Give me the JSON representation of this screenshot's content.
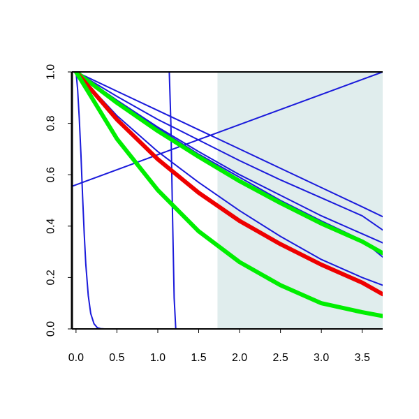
{
  "chart_data": {
    "type": "line",
    "title": "",
    "xlabel": "",
    "ylabel": "",
    "xlim": [
      -0.05,
      3.75
    ],
    "ylim": [
      0.0,
      1.0
    ],
    "grid": false,
    "legend": "none",
    "x_ticks": [
      "0.0",
      "0.5",
      "1.0",
      "1.5",
      "2.0",
      "2.5",
      "3.0",
      "3.5"
    ],
    "y_ticks": [
      "0.0",
      "0.2",
      "0.4",
      "0.6",
      "0.8",
      "1.0"
    ],
    "x_tick_values": [
      0,
      0.5,
      1,
      1.5,
      2,
      2.5,
      3,
      3.5
    ],
    "y_tick_values": [
      0,
      0.2,
      0.4,
      0.6,
      0.8,
      1.0
    ],
    "shaded_region": {
      "x_from": 1.73,
      "x_to": 3.75,
      "color": "#e0eded"
    },
    "colors": {
      "thin": "#1a1adb",
      "red": "#ee0000",
      "green": "#00ee00",
      "axis": "#000000"
    },
    "series": [
      {
        "style": "thin",
        "color": "#1a1adb",
        "x": [
          -0.05,
          3.75
        ],
        "y": [
          0.555,
          1.0
        ]
      },
      {
        "style": "thin",
        "color": "#1a1adb",
        "x": [
          0,
          0.02,
          0.04,
          0.06,
          0.08,
          0.1,
          0.12,
          0.15,
          0.18,
          0.22,
          0.26,
          0.3,
          0.35,
          3.75
        ],
        "y": [
          1.0,
          0.93,
          0.82,
          0.68,
          0.52,
          0.37,
          0.25,
          0.13,
          0.06,
          0.02,
          0.005,
          0.001,
          0.0,
          0.0
        ]
      },
      {
        "style": "thin",
        "color": "#1a1adb",
        "x": [
          -0.05,
          1.14,
          1.16,
          1.18,
          1.2,
          1.22,
          3.75
        ],
        "y": [
          1.0,
          1.0,
          0.8,
          0.45,
          0.12,
          0.0,
          0.0
        ]
      },
      {
        "style": "thin",
        "color": "#1a1adb",
        "x": [
          0,
          0.5,
          1,
          1.5,
          2,
          2.5,
          3,
          3.5,
          3.75
        ],
        "y": [
          1.0,
          0.925,
          0.85,
          0.775,
          0.7,
          0.625,
          0.55,
          0.475,
          0.437
        ]
      },
      {
        "style": "thin",
        "color": "#1a1adb",
        "x": [
          0,
          0.5,
          1,
          1.5,
          2,
          2.5,
          3,
          3.5,
          3.75
        ],
        "y": [
          1.0,
          0.905,
          0.815,
          0.735,
          0.655,
          0.58,
          0.51,
          0.44,
          0.385
        ]
      },
      {
        "style": "thin",
        "color": "#1a1adb",
        "x": [
          0,
          0.5,
          1,
          1.5,
          2,
          2.5,
          3,
          3.5,
          3.75
        ],
        "y": [
          1.0,
          0.89,
          0.785,
          0.69,
          0.6,
          0.52,
          0.44,
          0.37,
          0.335
        ]
      },
      {
        "style": "thin",
        "color": "#1a1adb",
        "x": [
          0,
          0.5,
          1,
          1.5,
          2,
          2.5,
          3,
          3.5,
          3.75
        ],
        "y": [
          1.0,
          0.885,
          0.78,
          0.68,
          0.59,
          0.5,
          0.42,
          0.345,
          0.28
        ]
      },
      {
        "style": "thin",
        "color": "#1a1adb",
        "x": [
          0,
          0.5,
          1,
          1.5,
          2,
          2.5,
          3,
          3.5,
          3.75
        ],
        "y": [
          1.0,
          0.83,
          0.69,
          0.57,
          0.46,
          0.36,
          0.27,
          0.2,
          0.17
        ]
      },
      {
        "style": "thin",
        "color": "#1a1adb",
        "x": [
          0,
          0.5,
          1,
          1.5,
          2,
          2.5,
          3,
          3.5,
          3.75
        ],
        "y": [
          1.0,
          0.81,
          0.655,
          0.525,
          0.415,
          0.325,
          0.245,
          0.175,
          0.14
        ]
      },
      {
        "style": "thick",
        "color": "#00ee00",
        "x": [
          0,
          0.5,
          1,
          1.5,
          2,
          2.5,
          3,
          3.5,
          3.75
        ],
        "y": [
          1.0,
          0.88,
          0.77,
          0.67,
          0.575,
          0.49,
          0.41,
          0.34,
          0.295
        ]
      },
      {
        "style": "thick",
        "color": "#ee0000",
        "x": [
          0,
          0.5,
          1,
          1.5,
          2,
          2.5,
          3,
          3.5,
          3.75
        ],
        "y": [
          1.0,
          0.815,
          0.66,
          0.53,
          0.42,
          0.33,
          0.25,
          0.18,
          0.135
        ]
      },
      {
        "style": "thick",
        "color": "#00ee00",
        "x": [
          0,
          0.5,
          1,
          1.5,
          2,
          2.5,
          3,
          3.5,
          3.75
        ],
        "y": [
          1.0,
          0.74,
          0.54,
          0.38,
          0.26,
          0.17,
          0.1,
          0.065,
          0.05
        ]
      }
    ]
  }
}
